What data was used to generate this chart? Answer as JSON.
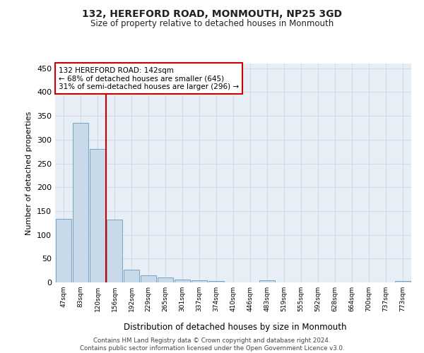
{
  "title": "132, HEREFORD ROAD, MONMOUTH, NP25 3GD",
  "subtitle": "Size of property relative to detached houses in Monmouth",
  "xlabel": "Distribution of detached houses by size in Monmouth",
  "ylabel": "Number of detached properties",
  "bar_color": "#c8daea",
  "bar_edge_color": "#6699bb",
  "grid_color": "#d0dce8",
  "background_color": "#e8eef5",
  "ref_line_color": "#cc0000",
  "ref_line_x": 2.5,
  "annotation_text": "132 HEREFORD ROAD: 142sqm\n← 68% of detached houses are smaller (645)\n31% of semi-detached houses are larger (296) →",
  "annotation_box_color": "#cc0000",
  "categories": [
    "47sqm",
    "83sqm",
    "120sqm",
    "156sqm",
    "192sqm",
    "229sqm",
    "265sqm",
    "301sqm",
    "337sqm",
    "374sqm",
    "410sqm",
    "446sqm",
    "483sqm",
    "519sqm",
    "555sqm",
    "592sqm",
    "628sqm",
    "664sqm",
    "700sqm",
    "737sqm",
    "773sqm"
  ],
  "values": [
    133,
    335,
    281,
    132,
    27,
    15,
    10,
    6,
    5,
    3,
    0,
    0,
    4,
    0,
    0,
    0,
    0,
    0,
    0,
    0,
    3
  ],
  "ylim": [
    0,
    460
  ],
  "yticks": [
    0,
    50,
    100,
    150,
    200,
    250,
    300,
    350,
    400,
    450
  ],
  "footer_line1": "Contains HM Land Registry data © Crown copyright and database right 2024.",
  "footer_line2": "Contains public sector information licensed under the Open Government Licence v3.0."
}
